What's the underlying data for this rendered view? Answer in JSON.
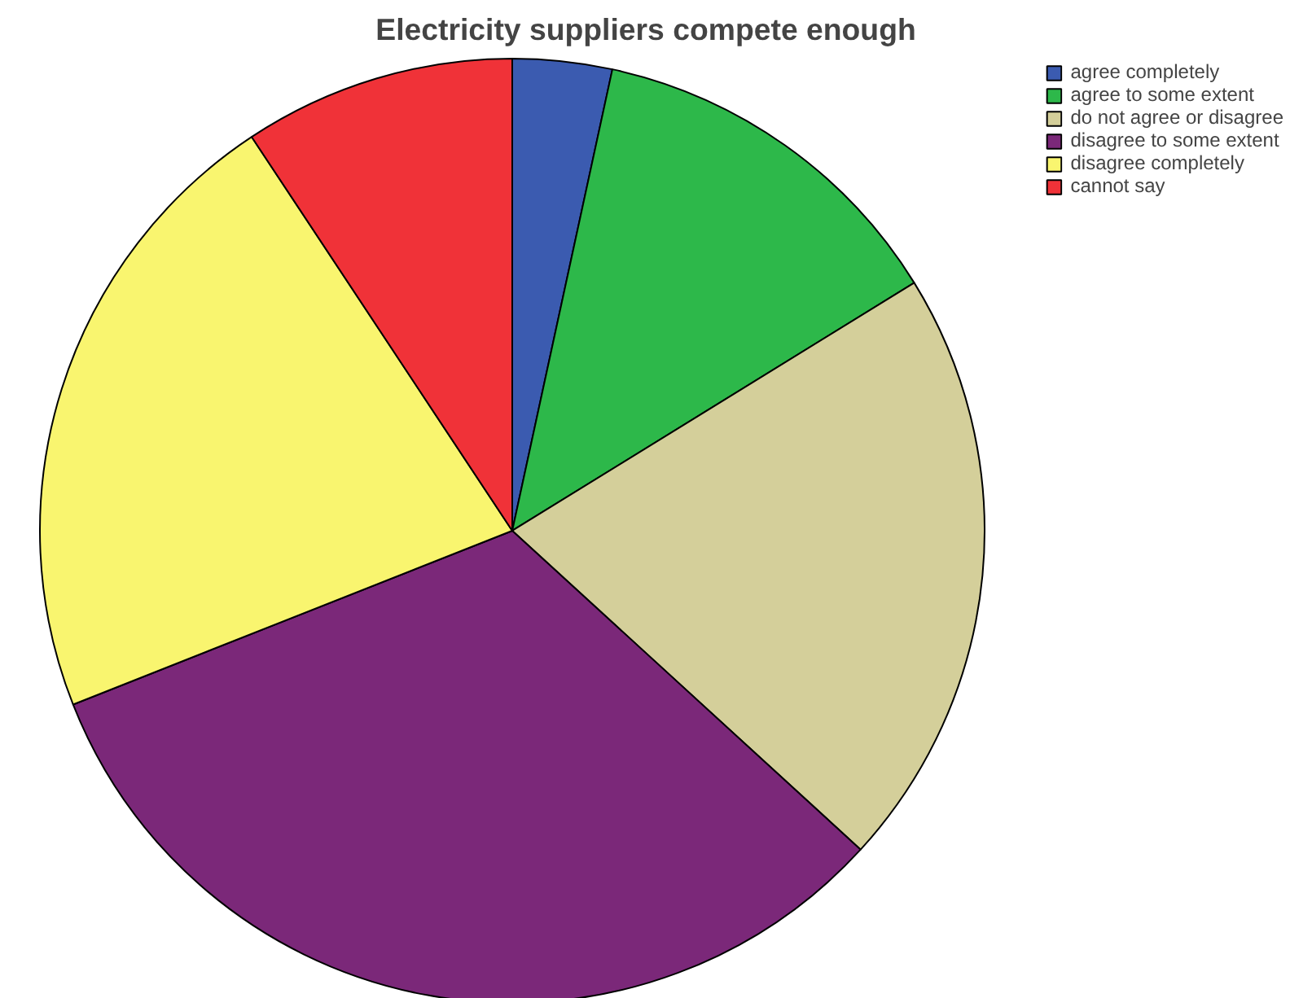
{
  "chart_data": {
    "type": "pie",
    "title": "Electricity suppliers compete enough",
    "categories": [
      "agree completely",
      "agree to some extent",
      "do not agree or disagree",
      "disagree to some extent",
      "disagree completely",
      "cannot say"
    ],
    "values": [
      3.4,
      12.8,
      20.6,
      32.2,
      21.7,
      9.3
    ],
    "colors": [
      "#3b5bb0",
      "#2db84a",
      "#d4cf9a",
      "#7b2879",
      "#f9f56f",
      "#f03238"
    ],
    "legend": "top right"
  }
}
